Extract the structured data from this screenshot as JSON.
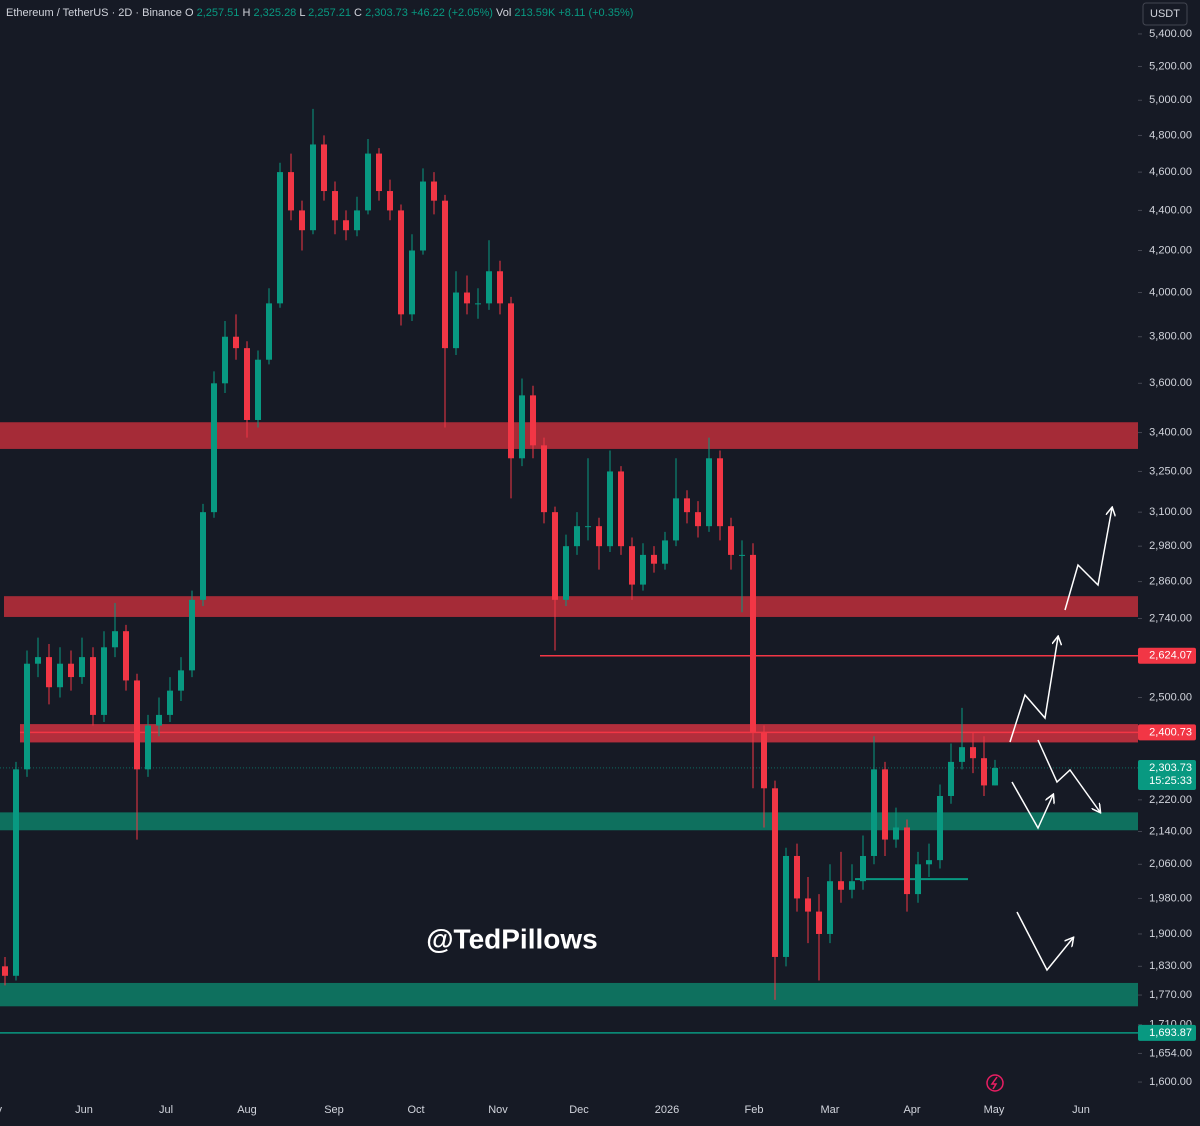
{
  "header": {
    "symbol": "Ethereum / TetherUS · 2D · Binance",
    "ohlc": [
      {
        "key": "O",
        "value": "2,257.51"
      },
      {
        "key": "H",
        "value": "2,325.28"
      },
      {
        "key": "L",
        "value": "2,257.21"
      },
      {
        "key": "C",
        "value": "2,303.73"
      }
    ],
    "change": "+46.22 (+2.05%)",
    "vol_key": "Vol",
    "vol": "213.59K",
    "vol_change": "+8.11 (+0.35%)"
  },
  "chart_data": {
    "type": "candlestick",
    "currency": "USDT",
    "watermark": "@TedPillows",
    "up_color": "#089981",
    "down_color": "#f23645",
    "log_scale": true,
    "grid": false,
    "ylim": [
      1567,
      5617
    ],
    "yticks": [
      {
        "value": 5400,
        "label": "5,400.00"
      },
      {
        "value": 5200,
        "label": "5,200.00"
      },
      {
        "value": 5000,
        "label": "5,000.00"
      },
      {
        "value": 4800,
        "label": "4,800.00"
      },
      {
        "value": 4600,
        "label": "4,600.00"
      },
      {
        "value": 4400,
        "label": "4,400.00"
      },
      {
        "value": 4200,
        "label": "4,200.00"
      },
      {
        "value": 4000,
        "label": "4,000.00"
      },
      {
        "value": 3800,
        "label": "3,800.00"
      },
      {
        "value": 3600,
        "label": "3,600.00"
      },
      {
        "value": 3400,
        "label": "3,400.00"
      },
      {
        "value": 3250,
        "label": "3,250.00"
      },
      {
        "value": 3100,
        "label": "3,100.00"
      },
      {
        "value": 2980,
        "label": "2,980.00"
      },
      {
        "value": 2860,
        "label": "2,860.00"
      },
      {
        "value": 2740,
        "label": "2,740.00"
      },
      {
        "value": 2500,
        "label": "2,500.00"
      },
      {
        "value": 2220,
        "label": "2,220.00"
      },
      {
        "value": 2140,
        "label": "2,140.00"
      },
      {
        "value": 2060,
        "label": "2,060.00"
      },
      {
        "value": 1980,
        "label": "1,980.00"
      },
      {
        "value": 1900,
        "label": "1,900.00"
      },
      {
        "value": 1830,
        "label": "1,830.00"
      },
      {
        "value": 1770,
        "label": "1,770.00"
      },
      {
        "value": 1710,
        "label": "1,710.00"
      },
      {
        "value": 1654,
        "label": "1,654.00"
      },
      {
        "value": 1600,
        "label": "1,600.00"
      }
    ],
    "xticks": [
      "y",
      "Jun",
      "Jul",
      "Aug",
      "Sep",
      "Oct",
      "Nov",
      "Dec",
      "2026",
      "Feb",
      "Mar",
      "Apr",
      "May",
      "Jun"
    ],
    "open": [
      1830,
      1810,
      2300,
      2600,
      2620,
      2530,
      2600,
      2560,
      2620,
      2450,
      2650,
      2700,
      2550,
      2300,
      2420,
      2450,
      2520,
      2580,
      2800,
      3100,
      3600,
      3800,
      3750,
      3450,
      3700,
      3950,
      4600,
      4400,
      4300,
      4750,
      4500,
      4350,
      4300,
      4400,
      4700,
      4500,
      4400,
      3900,
      4200,
      4550,
      4450,
      3750,
      4000,
      3950,
      3950,
      4100,
      3950,
      3300,
      3550,
      3350,
      3100,
      2800,
      2980,
      3050,
      3050,
      2980,
      3250,
      2980,
      2850,
      2950,
      2920,
      3000,
      3150,
      3100,
      3050,
      3300,
      3050,
      2950,
      2950,
      2400,
      2250,
      1850,
      2080,
      1980,
      1950,
      1900,
      2020,
      2000,
      2020,
      2080,
      2300,
      2120,
      2150,
      1990,
      2060,
      2070,
      2230,
      2320,
      2360,
      2330,
      2257.51
    ],
    "high": [
      1850,
      2320,
      2640,
      2680,
      2660,
      2650,
      2640,
      2680,
      2650,
      2700,
      2790,
      2720,
      2570,
      2450,
      2500,
      2560,
      2620,
      2830,
      3130,
      3650,
      3870,
      3900,
      3780,
      3740,
      4020,
      4650,
      4700,
      4450,
      4950,
      4800,
      4550,
      4400,
      4470,
      4780,
      4730,
      4560,
      4430,
      4280,
      4620,
      4600,
      4480,
      4100,
      4080,
      4020,
      4250,
      4150,
      3980,
      3620,
      3590,
      3380,
      3120,
      3020,
      3100,
      3300,
      3080,
      3330,
      3270,
      3010,
      2990,
      2980,
      3030,
      3300,
      3180,
      3140,
      3380,
      3330,
      3080,
      3000,
      2990,
      2420,
      2270,
      2100,
      2110,
      2030,
      1990,
      2060,
      2090,
      2060,
      2130,
      2390,
      2320,
      2200,
      2170,
      2090,
      2110,
      2260,
      2370,
      2470,
      2400,
      2390,
      2325.28
    ],
    "low": [
      1790,
      1800,
      2280,
      2560,
      2480,
      2500,
      2520,
      2540,
      2420,
      2430,
      2620,
      2520,
      2120,
      2280,
      2390,
      2430,
      2490,
      2560,
      2780,
      3080,
      3560,
      3700,
      3380,
      3420,
      3680,
      3930,
      4350,
      4200,
      4280,
      4450,
      4280,
      4250,
      4270,
      4380,
      4450,
      4350,
      3850,
      3870,
      4180,
      4380,
      3420,
      3720,
      3900,
      3880,
      3920,
      3900,
      3150,
      3270,
      3300,
      3060,
      2640,
      2780,
      2950,
      3000,
      2900,
      2960,
      2950,
      2800,
      2830,
      2890,
      2900,
      2980,
      3060,
      3010,
      3030,
      3000,
      2900,
      2760,
      2250,
      2150,
      1760,
      1830,
      1950,
      1880,
      1800,
      1880,
      1970,
      1980,
      2000,
      2060,
      2080,
      2100,
      1950,
      1970,
      2030,
      2050,
      2210,
      2300,
      2290,
      2230,
      2257.21
    ],
    "close": [
      1810,
      2300,
      2600,
      2620,
      2530,
      2600,
      2560,
      2620,
      2450,
      2650,
      2700,
      2550,
      2300,
      2420,
      2450,
      2520,
      2580,
      2800,
      3100,
      3600,
      3800,
      3750,
      3450,
      3700,
      3950,
      4600,
      4400,
      4300,
      4750,
      4500,
      4350,
      4300,
      4400,
      4700,
      4500,
      4400,
      3900,
      4200,
      4550,
      4450,
      3750,
      4000,
      3950,
      3950,
      4100,
      3950,
      3300,
      3550,
      3350,
      3100,
      2800,
      2980,
      3050,
      3050,
      2980,
      3250,
      2980,
      2850,
      2950,
      2920,
      3000,
      3150,
      3100,
      3050,
      3300,
      3050,
      2950,
      2950,
      2400,
      2250,
      1850,
      2080,
      1980,
      1950,
      1900,
      2020,
      2000,
      2020,
      2080,
      2300,
      2120,
      2150,
      1990,
      2060,
      2070,
      2230,
      2320,
      2360,
      2330,
      2257.51,
      2303.73
    ],
    "zones": [
      {
        "low": 3336,
        "high": 3441,
        "color": "#b52d3a"
      },
      {
        "low": 2745,
        "high": 2812,
        "color": "#b52d3a"
      },
      {
        "low": 2373,
        "high": 2424,
        "color": "#c4313f"
      },
      {
        "low": 2143,
        "high": 2188,
        "color": "#0d7a65"
      },
      {
        "low": 1747,
        "high": 1795,
        "color": "#0d7a65"
      }
    ],
    "support_line": {
      "value": 2025,
      "color": "#089981"
    },
    "levels": [
      {
        "value": 2624.07,
        "label": "2,624.07",
        "color": "#f23645"
      },
      {
        "value": 2400.73,
        "label": "2,400.73",
        "color": "#f23645"
      },
      {
        "value": 1693.87,
        "label": "1,693.87",
        "color": "#089981"
      }
    ],
    "last_price": {
      "value": 2303.73,
      "label": "2,303.73",
      "countdown": "15:25:33",
      "color": "#089981"
    }
  }
}
